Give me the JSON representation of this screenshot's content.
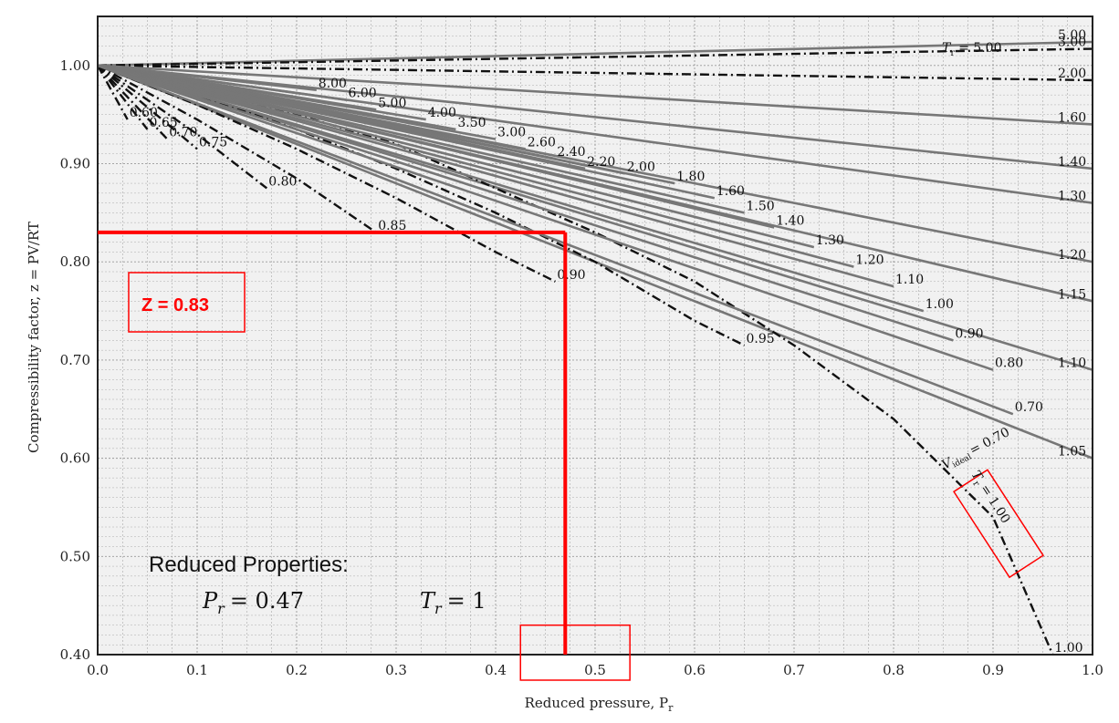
{
  "chart_data": {
    "type": "line",
    "title": "",
    "xlabel": "Reduced pressure, P",
    "xlabel_sub": "r",
    "ylabel": "Compressibility factor, z = PV/RT",
    "xlim": [
      0.0,
      1.0
    ],
    "ylim": [
      0.4,
      1.05
    ],
    "grid": true,
    "x_ticks": [
      "0.0",
      "0.1",
      "0.2",
      "0.3",
      "0.4",
      "0.5",
      "0.6",
      "0.7",
      "0.8",
      "0.9",
      "1.0"
    ],
    "y_ticks": [
      "0.40",
      "0.50",
      "0.60",
      "0.70",
      "0.80",
      "0.90",
      "1.00"
    ],
    "tr_curves": [
      {
        "name": "5.00",
        "label": "T = 5.00",
        "x": [
          0,
          1.0
        ],
        "y": [
          1.0,
          1.024
        ],
        "style": "solid"
      },
      {
        "name": "3.00",
        "x": [
          0,
          1.0
        ],
        "y": [
          1.0,
          1.017
        ],
        "style": "dashdot"
      },
      {
        "name": "2.00",
        "x": [
          0,
          1.0
        ],
        "y": [
          1.0,
          0.985
        ],
        "style": "dashdot"
      },
      {
        "name": "1.60",
        "x": [
          0,
          1.0
        ],
        "y": [
          1.0,
          0.94
        ],
        "style": "solid"
      },
      {
        "name": "1.40",
        "x": [
          0,
          1.0
        ],
        "y": [
          1.0,
          0.895
        ],
        "style": "solid"
      },
      {
        "name": "1.30",
        "x": [
          0,
          1.0
        ],
        "y": [
          1.0,
          0.86
        ],
        "style": "solid"
      },
      {
        "name": "1.20",
        "x": [
          0,
          1.0
        ],
        "y": [
          1.0,
          0.8
        ],
        "style": "solid"
      },
      {
        "name": "1.15",
        "x": [
          0,
          1.0
        ],
        "y": [
          1.0,
          0.76
        ],
        "style": "solid"
      },
      {
        "name": "1.10",
        "x": [
          0,
          1.0
        ],
        "y": [
          1.0,
          0.69
        ],
        "style": "solid"
      },
      {
        "name": "1.05",
        "x": [
          0,
          1.0
        ],
        "y": [
          1.0,
          0.6
        ],
        "style": "solid"
      },
      {
        "name": "1.00",
        "x": [
          0,
          0.1,
          0.2,
          0.3,
          0.4,
          0.5,
          0.6,
          0.7,
          0.8,
          0.9,
          0.96
        ],
        "y": [
          1.0,
          0.975,
          0.95,
          0.92,
          0.875,
          0.83,
          0.78,
          0.715,
          0.64,
          0.54,
          0.4
        ],
        "style": "dashdot"
      },
      {
        "name": "0.95",
        "x": [
          0,
          0.1,
          0.2,
          0.3,
          0.4,
          0.5,
          0.6,
          0.65
        ],
        "y": [
          1.0,
          0.97,
          0.935,
          0.895,
          0.85,
          0.8,
          0.74,
          0.715
        ],
        "style": "dashdot"
      },
      {
        "name": "0.90",
        "x": [
          0,
          0.1,
          0.2,
          0.3,
          0.4,
          0.46
        ],
        "y": [
          1.0,
          0.96,
          0.915,
          0.865,
          0.81,
          0.78
        ],
        "style": "dashdot"
      },
      {
        "name": "0.85",
        "x": [
          0,
          0.1,
          0.2,
          0.28
        ],
        "y": [
          1.0,
          0.945,
          0.885,
          0.83
        ],
        "style": "dashdot"
      },
      {
        "name": "0.80",
        "x": [
          0,
          0.1,
          0.17
        ],
        "y": [
          1.0,
          0.93,
          0.875
        ],
        "style": "dashdot"
      },
      {
        "name": "0.75",
        "x": [
          0,
          0.1
        ],
        "y": [
          1.0,
          0.915
        ],
        "style": "dashdot"
      },
      {
        "name": "0.70",
        "x": [
          0,
          0.07
        ],
        "y": [
          1.0,
          0.925
        ],
        "style": "dashdot"
      },
      {
        "name": "0.65",
        "x": [
          0,
          0.05
        ],
        "y": [
          1.0,
          0.935
        ],
        "style": "dashdot"
      },
      {
        "name": "0.60",
        "x": [
          0,
          0.03
        ],
        "y": [
          1.0,
          0.945
        ],
        "style": "dashdot"
      },
      {
        "name": "8.00",
        "x": [
          0,
          0.22
        ],
        "y": [
          1.0,
          0.975
        ],
        "style": "solid"
      },
      {
        "name": "6.00",
        "x": [
          0,
          0.25
        ],
        "y": [
          1.0,
          0.965
        ],
        "style": "solid"
      },
      {
        "name": "5.00",
        "x": [
          0,
          0.28
        ],
        "y": [
          1.0,
          0.955
        ],
        "style": "solid"
      },
      {
        "name": "4.00",
        "x": [
          0,
          0.33
        ],
        "y": [
          1.0,
          0.945
        ],
        "style": "solid"
      },
      {
        "name": "3.50",
        "x": [
          0,
          0.36
        ],
        "y": [
          1.0,
          0.935
        ],
        "style": "solid"
      },
      {
        "name": "3.00",
        "x": [
          0,
          0.4
        ],
        "y": [
          1.0,
          0.925
        ],
        "style": "solid"
      },
      {
        "name": "2.60",
        "x": [
          0,
          0.43
        ],
        "y": [
          1.0,
          0.915
        ],
        "style": "solid"
      },
      {
        "name": "2.40",
        "x": [
          0,
          0.46
        ],
        "y": [
          1.0,
          0.905
        ],
        "style": "solid"
      },
      {
        "name": "2.20",
        "x": [
          0,
          0.49
        ],
        "y": [
          1.0,
          0.895
        ],
        "style": "solid"
      },
      {
        "name": "2.00",
        "x": [
          0,
          0.53
        ],
        "y": [
          1.0,
          0.89
        ],
        "style": "solid"
      },
      {
        "name": "1.80",
        "x": [
          0,
          0.58
        ],
        "y": [
          1.0,
          0.88
        ],
        "style": "solid"
      },
      {
        "name": "1.60",
        "x": [
          0,
          0.62
        ],
        "y": [
          1.0,
          0.865
        ],
        "style": "solid"
      },
      {
        "name": "1.50",
        "x": [
          0,
          0.65
        ],
        "y": [
          1.0,
          0.85
        ],
        "style": "solid"
      },
      {
        "name": "1.40",
        "x": [
          0,
          0.68
        ],
        "y": [
          1.0,
          0.835
        ],
        "style": "solid"
      },
      {
        "name": "1.30",
        "x": [
          0,
          0.72
        ],
        "y": [
          1.0,
          0.815
        ],
        "style": "solid"
      },
      {
        "name": "1.20",
        "x": [
          0,
          0.76
        ],
        "y": [
          1.0,
          0.795
        ],
        "style": "solid"
      },
      {
        "name": "1.10",
        "x": [
          0,
          0.8
        ],
        "y": [
          1.0,
          0.775
        ],
        "style": "solid"
      },
      {
        "name": "1.00",
        "x": [
          0,
          0.83
        ],
        "y": [
          1.0,
          0.75
        ],
        "style": "solid"
      },
      {
        "name": "0.90",
        "x": [
          0,
          0.86
        ],
        "y": [
          1.0,
          0.72
        ],
        "style": "solid"
      },
      {
        "name": "0.80",
        "x": [
          0,
          0.9
        ],
        "y": [
          1.0,
          0.69
        ],
        "style": "solid"
      },
      {
        "name": "0.70",
        "x": [
          0,
          0.92
        ],
        "y": [
          1.0,
          0.645
        ],
        "style": "solid"
      }
    ],
    "highlight": {
      "pr": 0.47,
      "z": 0.83,
      "z_label": "Z = 0.83",
      "reduced_title": "Reduced Properties:",
      "pr_label": "P",
      "pr_sub": "r",
      "pr_value": "= 0.47",
      "tr_label": "T",
      "tr_sub": "r",
      "tr_value": "= 1",
      "tr_box_label": "T",
      "tr_box_sub": "r",
      "tr_box_value": "= 1.00",
      "ideal_label": "V",
      "ideal_sub": "ideal",
      "ideal_value": "= 0.70",
      "tr_top_label": "T",
      "tr_top_sub": "r",
      "tr_top_value": "= 5.00"
    },
    "colors": {
      "highlight": "#ff0000",
      "curve_solid": "#777777",
      "curve_dash": "#111111",
      "grid": "#999999",
      "background": "#f1f1f1"
    }
  }
}
